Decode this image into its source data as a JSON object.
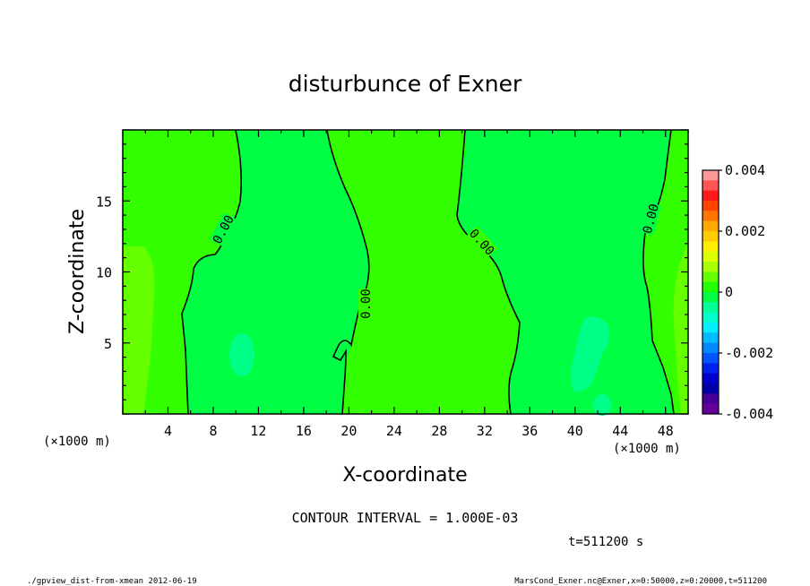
{
  "chart_data": {
    "type": "heatmap",
    "title": "disturbunce of Exner",
    "xlabel": "X-coordinate",
    "ylabel": "Z-coordinate",
    "x_unit": "(×1000 m)",
    "z_unit": "(×1000 m)",
    "xlim": [
      0,
      50
    ],
    "ylim": [
      0,
      20
    ],
    "x_ticks": [
      "4",
      "8",
      "12",
      "16",
      "20",
      "24",
      "28",
      "32",
      "36",
      "40",
      "44",
      "48"
    ],
    "y_ticks": [
      "5",
      "10",
      "15"
    ],
    "colorbar": {
      "range": [
        -0.004,
        0.004
      ],
      "tick_labels": [
        "0.004",
        "0.002",
        "0",
        "-0.002",
        "-0.004"
      ],
      "colors": [
        "#ff9999",
        "#ff5555",
        "#ff1a1a",
        "#ff4400",
        "#ff7700",
        "#ffaa00",
        "#ffcc00",
        "#ffee00",
        "#ddff00",
        "#aaff00",
        "#66ff00",
        "#22ff00",
        "#00ff44",
        "#00ff99",
        "#00ffcc",
        "#00eeff",
        "#00bbff",
        "#0088ff",
        "#0055ff",
        "#0022ee",
        "#0000cc",
        "#0000aa",
        "#440099",
        "#660099"
      ]
    },
    "contour_label": "0.00",
    "contour_interval": "CONTOUR INTERVAL = 1.000E-03",
    "time_label": "t=511200 s"
  },
  "footer": {
    "left": "./gpview_dist-from-xmean  2012-06-19",
    "right": "MarsCond_Exner.nc@Exner,x=0:50000,z=0:20000,t=511200"
  }
}
